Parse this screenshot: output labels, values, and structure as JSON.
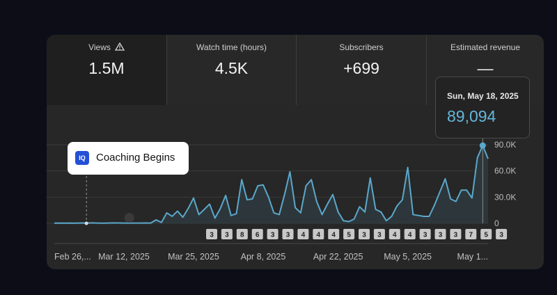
{
  "metrics": [
    {
      "label": "Views",
      "value": "1.5M",
      "icon": "warning-icon"
    },
    {
      "label": "Watch time (hours)",
      "value": "4.5K"
    },
    {
      "label": "Subscribers",
      "value": "+699"
    },
    {
      "label": "Estimated revenue",
      "value": "—"
    }
  ],
  "tooltip": {
    "date": "Sun, May 18, 2025",
    "value": "89,094"
  },
  "annotation": {
    "logo_text": "IQ",
    "label": "Coaching Begins"
  },
  "chart_data": {
    "type": "area",
    "x_labels": [
      "Feb 26,...",
      "Mar 12, 2025",
      "Mar 25, 2025",
      "Apr 8, 2025",
      "Apr 22, 2025",
      "May 5, 2025",
      "May 1..."
    ],
    "y_ticks": [
      "0",
      "30.0K",
      "60.0K",
      "90.0K"
    ],
    "ylim": [
      0,
      90000
    ],
    "series": [
      {
        "values": [
          200,
          300,
          200,
          300,
          200,
          400,
          300,
          500,
          300,
          200,
          300,
          500,
          400,
          300,
          300,
          300,
          300,
          400,
          300,
          4000,
          1000,
          12000,
          8000,
          14000,
          7000,
          17000,
          29000,
          10000,
          16000,
          22000,
          6000,
          17000,
          32000,
          9000,
          11000,
          50000,
          27000,
          28000,
          43000,
          44000,
          30000,
          12000,
          10000,
          33000,
          59000,
          18000,
          12000,
          43000,
          50000,
          25000,
          10000,
          22000,
          33000,
          13000,
          3000,
          2000,
          5000,
          19000,
          13000,
          52000,
          16000,
          13000,
          3000,
          8000,
          20000,
          27000,
          64000,
          10000,
          9000,
          8000,
          8000,
          21000,
          36000,
          51000,
          28000,
          25000,
          38000,
          38000,
          29000,
          75000,
          89094,
          74000
        ]
      }
    ],
    "markers": [
      "3",
      "3",
      "8",
      "6",
      "3",
      "3",
      "4",
      "4",
      "4",
      "5",
      "3",
      "3",
      "4",
      "4",
      "3",
      "3",
      "3",
      "7",
      "5",
      "3"
    ],
    "highlight": {
      "date": "Sun, May 18, 2025",
      "value": 89094
    },
    "colors": {
      "line": "#5ba8cc",
      "fill": "#2f3a3e",
      "grid": "#3b3b3b",
      "marker_bg": "#c8c8c8",
      "marker_text": "#222222"
    }
  }
}
